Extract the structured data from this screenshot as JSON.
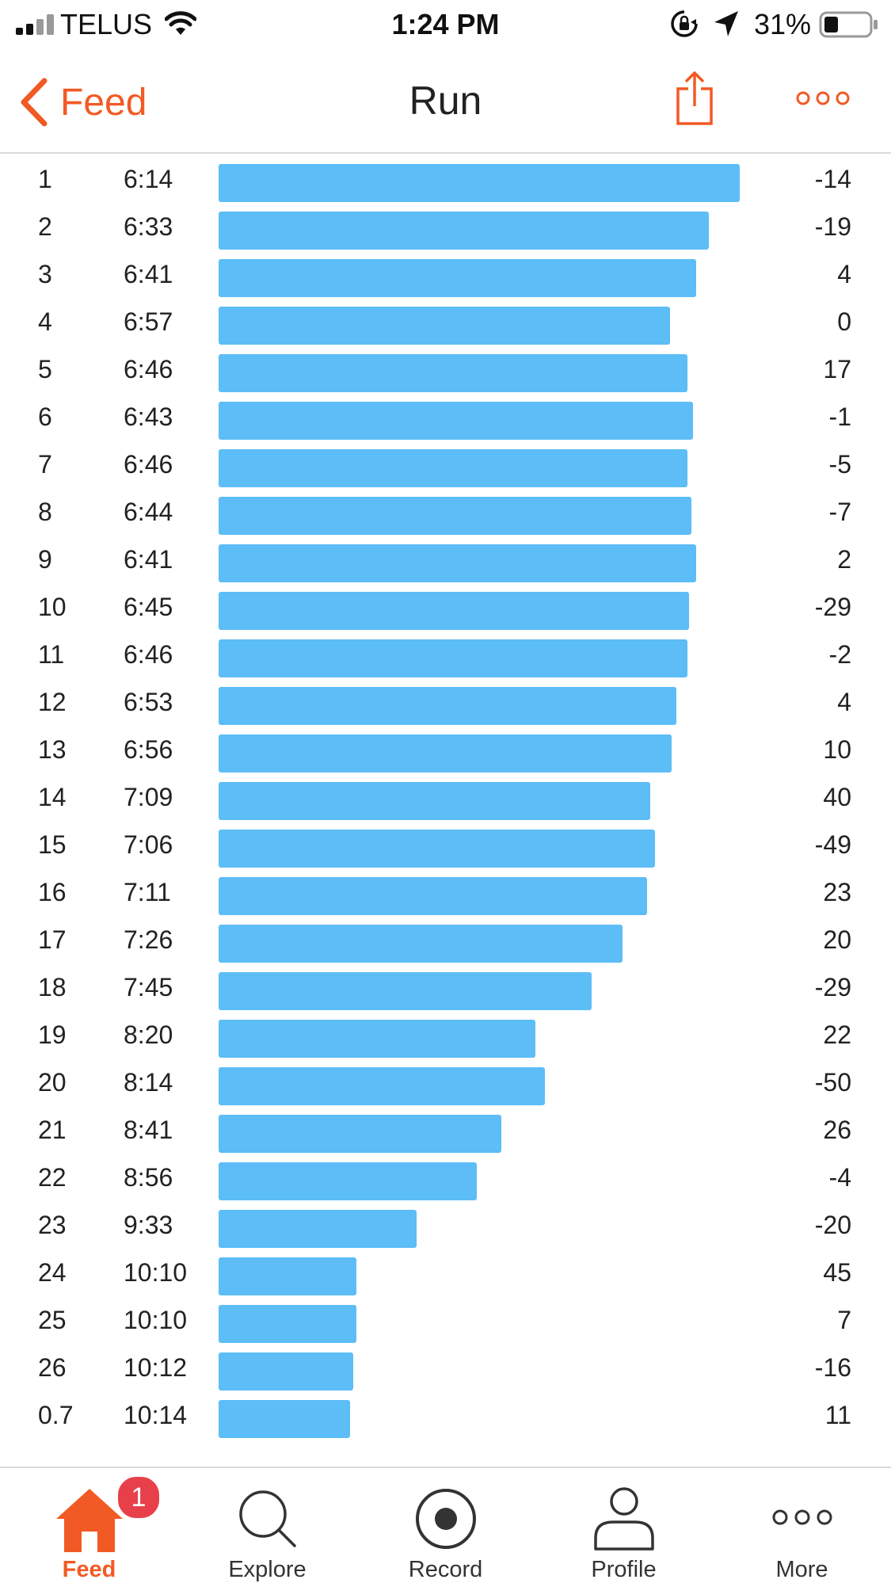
{
  "status_bar": {
    "carrier": "TELUS",
    "time": "1:24 PM",
    "battery": "31%",
    "battery_level": 0.31
  },
  "nav": {
    "back_label": "Feed",
    "title": "Run",
    "accent_color": "#f15a24"
  },
  "splits": {
    "bar_color": "#5cbdf7",
    "rows": [
      {
        "mile": "1",
        "pace": "6:14",
        "elevation": "-14"
      },
      {
        "mile": "2",
        "pace": "6:33",
        "elevation": "-19"
      },
      {
        "mile": "3",
        "pace": "6:41",
        "elevation": "4"
      },
      {
        "mile": "4",
        "pace": "6:57",
        "elevation": "0"
      },
      {
        "mile": "5",
        "pace": "6:46",
        "elevation": "17"
      },
      {
        "mile": "6",
        "pace": "6:43",
        "elevation": "-1"
      },
      {
        "mile": "7",
        "pace": "6:46",
        "elevation": "-5"
      },
      {
        "mile": "8",
        "pace": "6:44",
        "elevation": "-7"
      },
      {
        "mile": "9",
        "pace": "6:41",
        "elevation": "2"
      },
      {
        "mile": "10",
        "pace": "6:45",
        "elevation": "-29"
      },
      {
        "mile": "11",
        "pace": "6:46",
        "elevation": "-2"
      },
      {
        "mile": "12",
        "pace": "6:53",
        "elevation": "4"
      },
      {
        "mile": "13",
        "pace": "6:56",
        "elevation": "10"
      },
      {
        "mile": "14",
        "pace": "7:09",
        "elevation": "40"
      },
      {
        "mile": "15",
        "pace": "7:06",
        "elevation": "-49"
      },
      {
        "mile": "16",
        "pace": "7:11",
        "elevation": "23"
      },
      {
        "mile": "17",
        "pace": "7:26",
        "elevation": "20"
      },
      {
        "mile": "18",
        "pace": "7:45",
        "elevation": "-29"
      },
      {
        "mile": "19",
        "pace": "8:20",
        "elevation": "22"
      },
      {
        "mile": "20",
        "pace": "8:14",
        "elevation": "-50"
      },
      {
        "mile": "21",
        "pace": "8:41",
        "elevation": "26"
      },
      {
        "mile": "22",
        "pace": "8:56",
        "elevation": "-4"
      },
      {
        "mile": "23",
        "pace": "9:33",
        "elevation": "-20"
      },
      {
        "mile": "24",
        "pace": "10:10",
        "elevation": "45"
      },
      {
        "mile": "25",
        "pace": "10:10",
        "elevation": "7"
      },
      {
        "mile": "26",
        "pace": "10:12",
        "elevation": "-16"
      },
      {
        "mile": "0.7",
        "pace": "10:14",
        "elevation": "11"
      }
    ]
  },
  "tab_bar": {
    "feed_badge": "1",
    "tabs": [
      {
        "label": "Feed",
        "icon": "home-icon",
        "active": true
      },
      {
        "label": "Explore",
        "icon": "search-icon",
        "active": false
      },
      {
        "label": "Record",
        "icon": "record-icon",
        "active": false
      },
      {
        "label": "Profile",
        "icon": "profile-icon",
        "active": false
      },
      {
        "label": "More",
        "icon": "more-icon",
        "active": false
      }
    ]
  }
}
